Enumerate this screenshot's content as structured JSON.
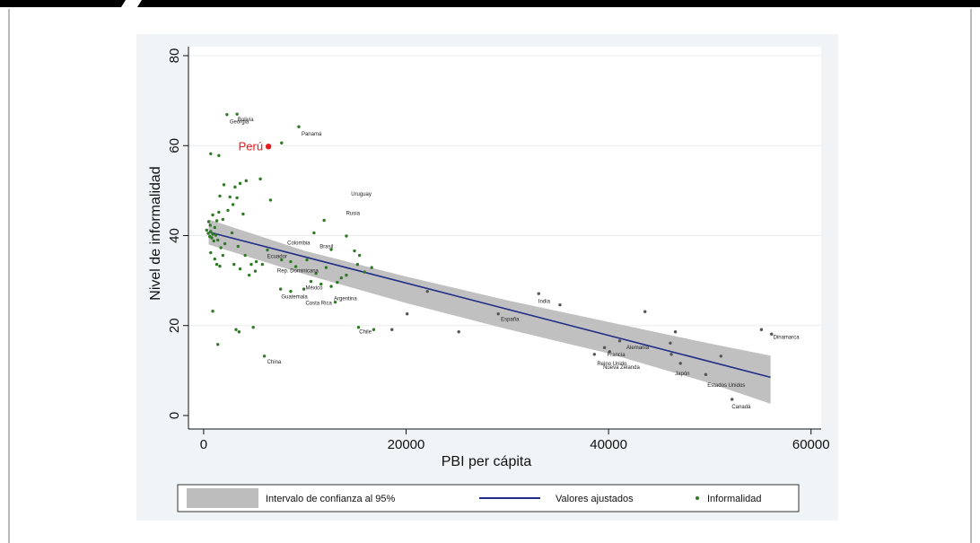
{
  "colors": {
    "panel": "#f1f4f6",
    "plot": "#ffffff",
    "band": "#bdbdbd",
    "line": "#1f2f86",
    "point": "#2f7a24",
    "point_dark": "#555555",
    "highlight": "#e41a1c",
    "grid": "#e9edf0",
    "topbar": "#000000"
  },
  "chart_data": {
    "type": "scatter",
    "title": "",
    "xlabel": "PBI per cápita",
    "ylabel": "Nivel de informalidad",
    "xlim": [
      -1500,
      61000
    ],
    "ylim": [
      -3,
      82
    ],
    "xticks": [
      0,
      20000,
      40000,
      60000
    ],
    "xtick_labels": [
      "0",
      "20000",
      "40000",
      "60000"
    ],
    "yticks": [
      0,
      20,
      40,
      60,
      80
    ],
    "ytick_labels": [
      "0",
      "20",
      "40",
      "60",
      "80"
    ],
    "grid": "horizontal",
    "legend_placement": "bottom",
    "legend": [
      "Intervalo de confianza al 95%",
      "Valores ajustados",
      "Informalidad"
    ],
    "fit_line": {
      "x": [
        500,
        56000
      ],
      "y": [
        40.8,
        8.5
      ]
    },
    "confidence_band": {
      "x": [
        500,
        10000,
        20000,
        30000,
        40000,
        50000,
        56000
      ],
      "upper": [
        43.6,
        36.6,
        30.9,
        25.6,
        20.8,
        16.0,
        13.3
      ],
      "lower": [
        38.0,
        31.4,
        25.0,
        19.2,
        13.8,
        7.2,
        2.6
      ]
    },
    "highlight": {
      "name": "Perú",
      "x": 6400,
      "y": 59.8
    },
    "labeled_points": [
      {
        "label": "Bolivia",
        "x": 3100,
        "y": 67.0
      },
      {
        "label": "Georgia",
        "x": 2300,
        "y": 66.5
      },
      {
        "label": "Panamá",
        "x": 9400,
        "y": 63.8
      },
      {
        "label": "Uruguay",
        "x": 14300,
        "y": 50.5
      },
      {
        "label": "Rusia",
        "x": 13800,
        "y": 46.2
      },
      {
        "label": "Colombia",
        "x": 8000,
        "y": 39.6
      },
      {
        "label": "Brasil",
        "x": 11200,
        "y": 38.8
      },
      {
        "label": "Ecuador",
        "x": 6000,
        "y": 36.6
      },
      {
        "label": "Rep. Dominicana",
        "x": 7000,
        "y": 33.4
      },
      {
        "label": "México",
        "x": 9800,
        "y": 29.6
      },
      {
        "label": "Guatemala",
        "x": 7400,
        "y": 27.6
      },
      {
        "label": "Argentina",
        "x": 12600,
        "y": 27.2
      },
      {
        "label": "Costa Rica",
        "x": 9800,
        "y": 26.2
      },
      {
        "label": "Chile",
        "x": 15100,
        "y": 19.8
      },
      {
        "label": "China",
        "x": 6000,
        "y": 13.2
      },
      {
        "label": "India",
        "x": 32800,
        "y": 26.6
      },
      {
        "label": "España",
        "x": 29100,
        "y": 22.6
      },
      {
        "label": "Alemania",
        "x": 41500,
        "y": 16.4
      },
      {
        "label": "Francia",
        "x": 39600,
        "y": 14.8
      },
      {
        "label": "Reino Unido",
        "x": 38600,
        "y": 12.8
      },
      {
        "label": "Nueva Zelanda",
        "x": 39200,
        "y": 12.0
      },
      {
        "label": "Japón",
        "x": 46300,
        "y": 10.6
      },
      {
        "label": "Estados Unidos",
        "x": 49500,
        "y": 8.0
      },
      {
        "label": "Dinamarca",
        "x": 56000,
        "y": 18.6
      },
      {
        "label": "Canadá",
        "x": 51900,
        "y": 3.2
      }
    ],
    "points": [
      [
        300,
        41.2
      ],
      [
        450,
        40.5
      ],
      [
        600,
        39.8
      ],
      [
        700,
        40.9
      ],
      [
        800,
        39.5
      ],
      [
        900,
        40.3
      ],
      [
        1000,
        38.8
      ],
      [
        650,
        42.3
      ],
      [
        1100,
        41.8
      ],
      [
        1200,
        40.1
      ],
      [
        1400,
        39.0
      ],
      [
        500,
        43.1
      ],
      [
        900,
        44.6
      ],
      [
        1500,
        45.2
      ],
      [
        700,
        36.2
      ],
      [
        1100,
        34.8
      ],
      [
        1300,
        33.6
      ],
      [
        1600,
        33.2
      ],
      [
        1900,
        35.6
      ],
      [
        1700,
        37.3
      ],
      [
        2100,
        38.2
      ],
      [
        1300,
        43.3
      ],
      [
        1900,
        43.6
      ],
      [
        2400,
        45.6
      ],
      [
        2900,
        46.9
      ],
      [
        3300,
        48.4
      ],
      [
        3900,
        44.8
      ],
      [
        2600,
        48.6
      ],
      [
        1600,
        48.8
      ],
      [
        2000,
        51.3
      ],
      [
        3100,
        50.8
      ],
      [
        3600,
        51.6
      ],
      [
        4200,
        52.2
      ],
      [
        5600,
        52.6
      ],
      [
        6600,
        47.9
      ],
      [
        2800,
        40.6
      ],
      [
        3400,
        37.6
      ],
      [
        4100,
        35.6
      ],
      [
        4700,
        33.6
      ],
      [
        5200,
        34.2
      ],
      [
        5800,
        33.6
      ],
      [
        6300,
        36.8
      ],
      [
        3000,
        33.6
      ],
      [
        3600,
        32.6
      ],
      [
        4500,
        31.2
      ],
      [
        5100,
        32.1
      ],
      [
        7700,
        34.6
      ],
      [
        8600,
        34.2
      ],
      [
        9100,
        33.1
      ],
      [
        10200,
        34.6
      ],
      [
        11100,
        31.6
      ],
      [
        12100,
        32.9
      ],
      [
        13200,
        29.6
      ],
      [
        14100,
        31.2
      ],
      [
        15200,
        33.6
      ],
      [
        10600,
        29.8
      ],
      [
        11600,
        29.2
      ],
      [
        12600,
        28.7
      ],
      [
        13600,
        30.6
      ],
      [
        15900,
        31.9
      ],
      [
        16600,
        32.9
      ],
      [
        11900,
        43.4
      ],
      [
        10900,
        40.6
      ],
      [
        14100,
        39.9
      ],
      [
        14900,
        36.6
      ],
      [
        15400,
        35.6
      ],
      [
        12600,
        36.9
      ],
      [
        700,
        58.2
      ],
      [
        1500,
        57.8
      ],
      [
        2300,
        66.9
      ],
      [
        3300,
        67.0
      ],
      [
        7700,
        60.6
      ],
      [
        9400,
        64.2
      ],
      [
        900,
        23.2
      ],
      [
        1400,
        15.8
      ],
      [
        3200,
        19.1
      ],
      [
        3500,
        18.6
      ],
      [
        4900,
        19.6
      ],
      [
        6000,
        13.2
      ],
      [
        7600,
        28.1
      ],
      [
        8600,
        27.6
      ],
      [
        9900,
        28.1
      ],
      [
        13000,
        25.2
      ],
      [
        15300,
        19.6
      ],
      [
        16800,
        19.1
      ],
      [
        18600,
        19.1
      ],
      [
        20100,
        22.6
      ],
      [
        22100,
        27.6
      ],
      [
        25200,
        18.6
      ],
      [
        29100,
        22.6
      ],
      [
        33100,
        27.1
      ],
      [
        35200,
        24.6
      ],
      [
        43600,
        23.1
      ],
      [
        41100,
        16.6
      ],
      [
        39600,
        15.1
      ],
      [
        38600,
        13.6
      ],
      [
        40100,
        14.2
      ],
      [
        46100,
        16.1
      ],
      [
        46600,
        18.6
      ],
      [
        46200,
        13.6
      ],
      [
        47100,
        11.6
      ],
      [
        49600,
        9.1
      ],
      [
        51100,
        13.2
      ],
      [
        52200,
        3.6
      ],
      [
        55100,
        19.1
      ],
      [
        56100,
        18.1
      ]
    ]
  }
}
